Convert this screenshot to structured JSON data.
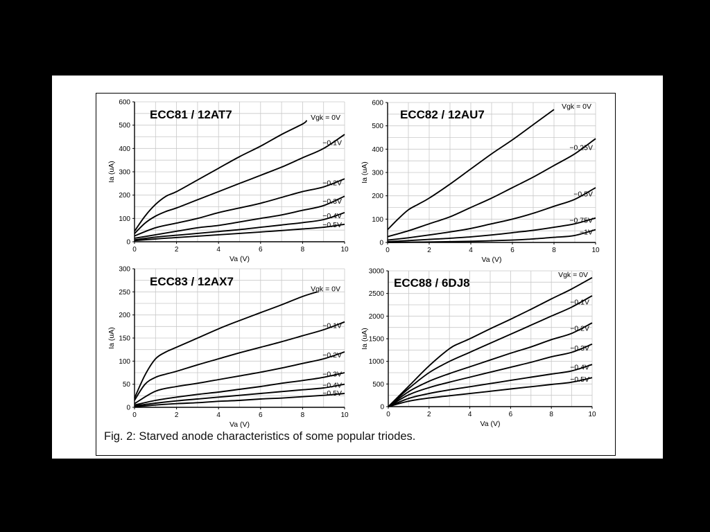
{
  "caption": "Fig. 2: Starved anode characteristics of some popular triodes.",
  "chart_data": [
    {
      "type": "line",
      "title": "ECC81 / 12AT7",
      "xlabel": "Va (V)",
      "ylabel": "Ia (uA)",
      "xlim": [
        0,
        10
      ],
      "ylim": [
        0,
        600
      ],
      "xticks": [
        "0",
        "2",
        "4",
        "6",
        "8",
        "10"
      ],
      "yticks": [
        "0",
        "100",
        "200",
        "300",
        "400",
        "500",
        "600"
      ],
      "grid": true,
      "series": [
        {
          "name": "Vgk = 0V",
          "x": [
            0,
            0.5,
            1,
            1.5,
            2,
            3,
            4,
            5,
            6,
            7,
            8,
            8.2
          ],
          "y": [
            45,
            110,
            160,
            195,
            215,
            265,
            315,
            365,
            410,
            460,
            505,
            520
          ]
        },
        {
          "name": "−0.1V",
          "x": [
            0,
            0.5,
            1,
            1.5,
            2,
            3,
            4,
            5,
            6,
            7,
            8,
            9,
            10
          ],
          "y": [
            35,
            80,
            110,
            130,
            145,
            180,
            215,
            250,
            285,
            320,
            360,
            400,
            460
          ]
        },
        {
          "name": "−0.2V",
          "x": [
            0,
            1,
            2,
            3,
            4,
            5,
            6,
            7,
            8,
            9,
            10
          ],
          "y": [
            25,
            60,
            80,
            100,
            125,
            145,
            165,
            190,
            215,
            235,
            270
          ]
        },
        {
          "name": "−0.3V",
          "x": [
            0,
            1,
            2,
            3,
            4,
            5,
            6,
            7,
            8,
            9,
            10
          ],
          "y": [
            15,
            30,
            45,
            60,
            70,
            85,
            100,
            115,
            135,
            155,
            195
          ]
        },
        {
          "name": "−0.4V",
          "x": [
            0,
            1,
            2,
            3,
            4,
            5,
            6,
            7,
            8,
            9,
            10
          ],
          "y": [
            8,
            20,
            28,
            36,
            44,
            52,
            62,
            72,
            82,
            95,
            125
          ]
        },
        {
          "name": "−0.5V",
          "x": [
            0,
            1,
            2,
            3,
            4,
            5,
            6,
            7,
            8,
            9,
            10
          ],
          "y": [
            5,
            12,
            18,
            24,
            30,
            36,
            42,
            48,
            55,
            62,
            75
          ]
        }
      ]
    },
    {
      "type": "line",
      "title": "ECC82 / 12AU7",
      "xlabel": "Va (V)",
      "ylabel": "Ia (uA)",
      "xlim": [
        0,
        10
      ],
      "ylim": [
        0,
        600
      ],
      "xticks": [
        "0",
        "2",
        "4",
        "6",
        "8",
        "10"
      ],
      "yticks": [
        "0",
        "100",
        "200",
        "300",
        "400",
        "500",
        "600"
      ],
      "grid": true,
      "series": [
        {
          "name": "Vgk = 0V",
          "x": [
            0,
            0.5,
            1,
            1.5,
            2,
            3,
            4,
            5,
            6,
            7,
            8
          ],
          "y": [
            55,
            100,
            140,
            165,
            190,
            250,
            315,
            380,
            440,
            505,
            570
          ]
        },
        {
          "name": "−0.25V",
          "x": [
            0,
            1,
            2,
            3,
            4,
            5,
            6,
            7,
            8,
            9,
            10
          ],
          "y": [
            25,
            50,
            80,
            110,
            150,
            190,
            235,
            280,
            330,
            380,
            445
          ]
        },
        {
          "name": "−0.5V",
          "x": [
            0,
            1,
            2,
            3,
            4,
            5,
            6,
            7,
            8,
            9,
            10
          ],
          "y": [
            10,
            20,
            32,
            45,
            60,
            80,
            100,
            125,
            155,
            185,
            235
          ]
        },
        {
          "name": "−0.75V",
          "x": [
            0,
            1,
            2,
            3,
            4,
            5,
            6,
            7,
            8,
            9,
            10
          ],
          "y": [
            3,
            8,
            13,
            18,
            24,
            32,
            42,
            52,
            65,
            80,
            105
          ]
        },
        {
          "name": "−1V",
          "x": [
            0,
            2,
            4,
            6,
            7,
            8,
            9,
            10
          ],
          "y": [
            0,
            2,
            5,
            10,
            15,
            22,
            30,
            55
          ]
        }
      ]
    },
    {
      "type": "line",
      "title": "ECC83 / 12AX7",
      "xlabel": "Va (V)",
      "ylabel": "Ia (uA)",
      "xlim": [
        0,
        10
      ],
      "ylim": [
        0,
        300
      ],
      "xticks": [
        "0",
        "2",
        "4",
        "6",
        "8",
        "10"
      ],
      "yticks": [
        "0",
        "50",
        "100",
        "150",
        "200",
        "250",
        "300"
      ],
      "grid": true,
      "series": [
        {
          "name": "Vgk = 0V",
          "x": [
            0,
            0.5,
            1,
            1.5,
            2,
            3,
            4,
            5,
            6,
            7,
            8,
            8.7
          ],
          "y": [
            20,
            70,
            105,
            120,
            130,
            150,
            170,
            188,
            205,
            222,
            240,
            250
          ]
        },
        {
          "name": "−0.1V",
          "x": [
            0,
            0.5,
            1,
            1.5,
            2,
            3,
            4,
            5,
            6,
            7,
            8,
            9,
            10
          ],
          "y": [
            15,
            50,
            65,
            72,
            78,
            92,
            105,
            118,
            130,
            142,
            155,
            168,
            185
          ]
        },
        {
          "name": "−0.2V",
          "x": [
            0,
            1,
            2,
            3,
            4,
            5,
            6,
            7,
            8,
            9,
            10
          ],
          "y": [
            8,
            35,
            45,
            52,
            60,
            68,
            76,
            85,
            95,
            105,
            120
          ]
        },
        {
          "name": "−0.3V",
          "x": [
            0,
            1,
            2,
            3,
            4,
            5,
            6,
            7,
            8,
            9,
            10
          ],
          "y": [
            5,
            15,
            22,
            28,
            33,
            39,
            45,
            52,
            58,
            65,
            75
          ]
        },
        {
          "name": "−0.4V",
          "x": [
            0,
            1,
            2,
            3,
            4,
            5,
            6,
            7,
            8,
            9,
            10
          ],
          "y": [
            3,
            9,
            14,
            18,
            22,
            26,
            30,
            34,
            38,
            42,
            50
          ]
        },
        {
          "name": "−0.5V",
          "x": [
            0,
            1,
            2,
            3,
            4,
            5,
            6,
            7,
            8,
            9,
            10
          ],
          "y": [
            1,
            5,
            8,
            10,
            13,
            15,
            18,
            20,
            23,
            26,
            30
          ]
        }
      ]
    },
    {
      "type": "line",
      "title": "ECC88 / 6DJ8",
      "xlabel": "Va (V)",
      "ylabel": "Ia (uA)",
      "xlim": [
        0,
        10
      ],
      "ylim": [
        0,
        3000
      ],
      "xticks": [
        "0",
        "2",
        "4",
        "6",
        "8",
        "10"
      ],
      "yticks": [
        "0",
        "500",
        "1000",
        "1500",
        "2000",
        "2500",
        "3000"
      ],
      "grid": true,
      "series": [
        {
          "name": "Vgk = 0V",
          "x": [
            0,
            1,
            2,
            3,
            3.5,
            4,
            5,
            6,
            7,
            8,
            9,
            10
          ],
          "y": [
            0,
            450,
            900,
            1280,
            1400,
            1500,
            1720,
            1930,
            2150,
            2380,
            2600,
            2850
          ]
        },
        {
          "name": "−0.1V",
          "x": [
            0,
            1,
            2,
            3,
            4,
            5,
            6,
            7,
            8,
            9,
            10
          ],
          "y": [
            0,
            400,
            750,
            1000,
            1200,
            1400,
            1600,
            1800,
            2000,
            2200,
            2450
          ]
        },
        {
          "name": "−0.2V",
          "x": [
            0,
            1,
            2,
            3,
            4,
            5,
            6,
            7,
            8,
            9,
            10
          ],
          "y": [
            0,
            330,
            560,
            730,
            880,
            1030,
            1180,
            1320,
            1480,
            1620,
            1850
          ]
        },
        {
          "name": "−0.3V",
          "x": [
            0,
            1,
            2,
            3,
            4,
            5,
            6,
            7,
            8,
            9,
            10
          ],
          "y": [
            0,
            260,
            420,
            540,
            650,
            760,
            870,
            980,
            1100,
            1200,
            1380
          ]
        },
        {
          "name": "−0.4V",
          "x": [
            0,
            1,
            2,
            3,
            4,
            5,
            6,
            7,
            8,
            9,
            10
          ],
          "y": [
            0,
            180,
            290,
            370,
            440,
            510,
            580,
            650,
            720,
            790,
            930
          ]
        },
        {
          "name": "−0.5V",
          "x": [
            0,
            1,
            2,
            3,
            4,
            5,
            6,
            7,
            8,
            9,
            10
          ],
          "y": [
            0,
            120,
            190,
            240,
            290,
            340,
            390,
            440,
            490,
            540,
            640
          ]
        }
      ]
    }
  ]
}
